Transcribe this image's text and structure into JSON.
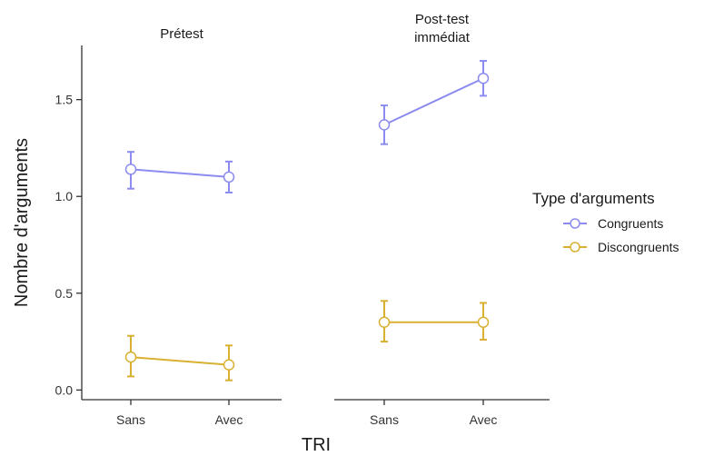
{
  "chart_data": {
    "type": "line",
    "xlabel": "TRI",
    "ylabel": "Nombre d'arguments",
    "ylim": [
      -0.05,
      1.78
    ],
    "yticks": [
      0.0,
      0.5,
      1.0,
      1.5
    ],
    "ytick_labels": [
      "0.0",
      "0.5",
      "1.0",
      "1.5"
    ],
    "categories": [
      "Sans",
      "Avec"
    ],
    "grid": false,
    "legend": {
      "title": "Type d'arguments",
      "position": "right",
      "entries": [
        "Congruents",
        "Discongruents"
      ]
    },
    "colors": {
      "Congruents": "#8c8cf0",
      "Discongruents": "#d9b032"
    },
    "panels": [
      {
        "title": [
          "Prétest"
        ],
        "series": [
          {
            "name": "Congruents",
            "values": [
              1.14,
              1.1
            ],
            "lower": [
              1.04,
              1.02
            ],
            "upper": [
              1.23,
              1.18
            ]
          },
          {
            "name": "Discongruents",
            "values": [
              0.17,
              0.13
            ],
            "lower": [
              0.07,
              0.05
            ],
            "upper": [
              0.28,
              0.23
            ]
          }
        ]
      },
      {
        "title": [
          "Post-test",
          "immédiat"
        ],
        "series": [
          {
            "name": "Congruents",
            "values": [
              1.37,
              1.61
            ],
            "lower": [
              1.27,
              1.52
            ],
            "upper": [
              1.47,
              1.7
            ]
          },
          {
            "name": "Discongruents",
            "values": [
              0.35,
              0.35
            ],
            "lower": [
              0.25,
              0.26
            ],
            "upper": [
              0.46,
              0.45
            ]
          }
        ]
      }
    ]
  }
}
